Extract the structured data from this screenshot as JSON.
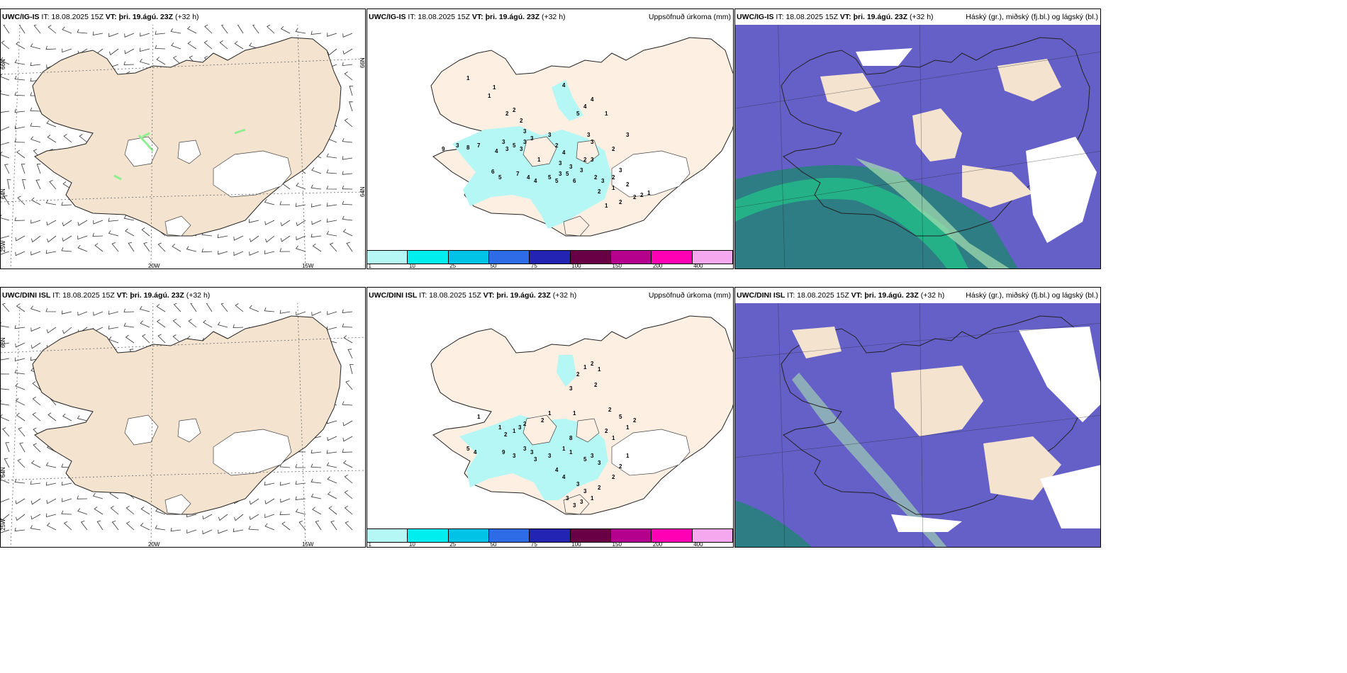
{
  "panels": [
    {
      "model": "UWC/IG-IS",
      "it": "IT: 18.08.2025 15Z",
      "vt": "VT: þri. 19.ágú. 23Z",
      "lead": "(+32 h)",
      "product": ""
    },
    {
      "model": "UWC/IG-IS",
      "it": "IT: 18.08.2025 15Z",
      "vt": "VT: þri. 19.ágú. 23Z",
      "lead": "(+32 h)",
      "product": "Uppsöfnuð úrkoma (mm)"
    },
    {
      "model": "UWC/IG-IS",
      "it": "IT: 18.08.2025 15Z",
      "vt": "VT: þri. 19.ágú. 23Z",
      "lead": "(+32 h)",
      "product": "Háský (gr.), miðský (fj.bl.) og lágský (bl.)"
    },
    {
      "model": "UWC/DINI ISL",
      "it": "IT: 18.08.2025 15Z",
      "vt": "VT: þri. 19.ágú. 23Z",
      "lead": "(+32 h)",
      "product": ""
    },
    {
      "model": "UWC/DINI ISL",
      "it": "IT: 18.08.2025 15Z",
      "vt": "VT: þri. 19.ágú. 23Z",
      "lead": "(+32 h)",
      "product": "Uppsöfnuð úrkoma (mm)"
    },
    {
      "model": "UWC/DINI ISL",
      "it": "IT: 18.08.2025 15Z",
      "vt": "VT: þri. 19.ágú. 23Z",
      "lead": "(+32 h)",
      "product": "Háský (gr.), miðský (fj.bl.) og lágský (bl.)"
    }
  ],
  "grid_labels": {
    "lat66": "66N",
    "lat64": "64N",
    "lon25": "25W",
    "lon20": "20W",
    "lon15": "15W"
  },
  "precip_legend": {
    "labels": [
      "1",
      "10",
      "25",
      "50",
      "75",
      "100",
      "150",
      "200",
      "400"
    ],
    "colors": [
      "#b4f7f5",
      "#00eeee",
      "#00c3e6",
      "#2e6be6",
      "#2323b4",
      "#690046",
      "#b4008c",
      "#ff00b4",
      "#f5a8ee"
    ]
  },
  "colors": {
    "land": "#f3e3cf",
    "precip_low": "#b4f7f5",
    "cloud_mid": "#6560c8",
    "cloud_high": "#2e7c84",
    "cloud_green": "#22bb88"
  },
  "precip_values_top": [
    "1",
    "1",
    "1",
    "2",
    "2",
    "2",
    "3",
    "3",
    "3",
    "3",
    "5",
    "9",
    "3",
    "8",
    "7",
    "4",
    "3",
    "3",
    "3",
    "2",
    "4",
    "3",
    "3",
    "3",
    "1",
    "3",
    "5",
    "5",
    "6",
    "2",
    "6",
    "5",
    "7",
    "4",
    "4",
    "5",
    "3",
    "3",
    "3",
    "2",
    "3",
    "2",
    "3",
    "2",
    "1",
    "2",
    "1",
    "2",
    "2",
    "2",
    "1",
    "2",
    "4",
    "4",
    "5",
    "4",
    "1",
    "3"
  ],
  "precip_values_bottom": [
    "1",
    "1",
    "2",
    "1",
    "3",
    "2",
    "2",
    "1",
    "1",
    "2",
    "1",
    "2",
    "1",
    "3",
    "2",
    "2",
    "5",
    "5",
    "4",
    "9",
    "3",
    "3",
    "3",
    "3",
    "3",
    "1",
    "1",
    "5",
    "3",
    "3",
    "8",
    "4",
    "4",
    "3",
    "3",
    "1",
    "2",
    "2",
    "2",
    "1",
    "1",
    "2",
    "2",
    "1",
    "3",
    "3",
    "3"
  ]
}
